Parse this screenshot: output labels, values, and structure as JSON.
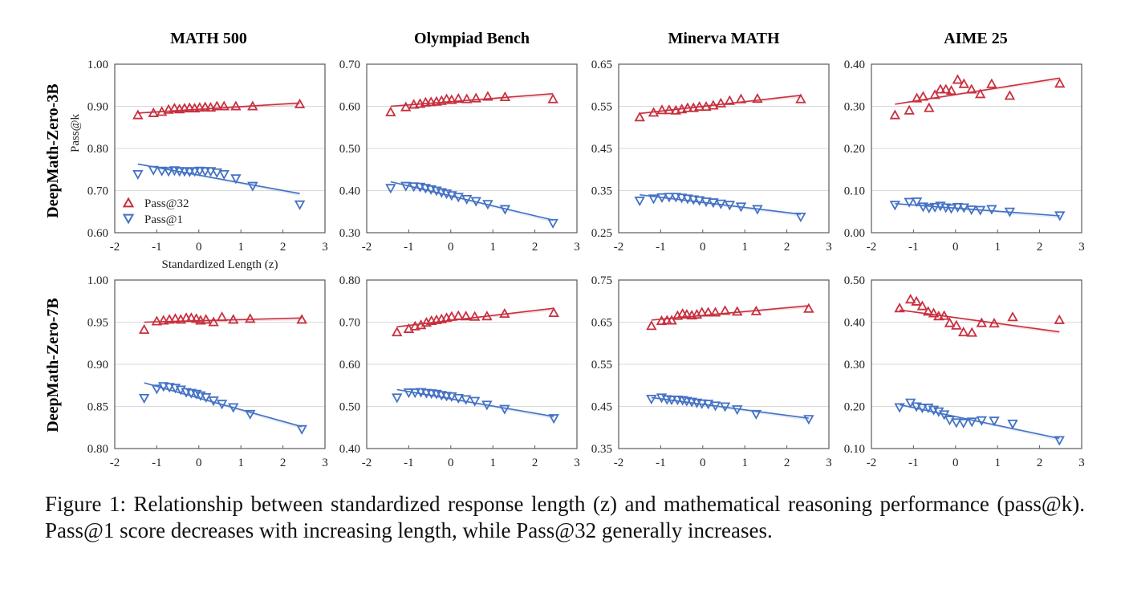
{
  "figure": {
    "caption": "Figure 1: Relationship between standardized response length (z) and mathematical reasoning performance (pass@k). Pass@1 score decreases with increasing length, while Pass@32 generally increases."
  },
  "colors": {
    "pass32": "#c8303f",
    "pass1": "#4472c4",
    "grid": "#d9d9d9",
    "frame": "#595959"
  },
  "chart_data": {
    "type": "scatter",
    "layout": "2x4 grid of panels with linear trend lines",
    "columns": [
      "MATH 500",
      "Olympiad Bench",
      "Minerva MATH",
      "AIME 25"
    ],
    "rows": [
      "DeepMath-Zero-3B",
      "DeepMath-Zero-7B"
    ],
    "xlabel": "Standardized Length (z)",
    "ylabel": "Pass@k",
    "xlim": [
      -2,
      3
    ],
    "xticks": [
      -2,
      -1,
      0,
      1,
      2,
      3
    ],
    "legend": {
      "placement": "bottom-left of first panel",
      "entries": [
        {
          "name": "Pass@32",
          "marker": "triangle-up"
        },
        {
          "name": "Pass@1",
          "marker": "triangle-down"
        }
      ]
    },
    "grid": true,
    "panels": [
      {
        "row": "DeepMath-Zero-3B",
        "column": "MATH 500",
        "ylim": [
          0.6,
          1.0
        ],
        "yticks": [
          "0.60",
          "0.70",
          "0.80",
          "0.90",
          "1.00"
        ],
        "series": [
          {
            "name": "Pass@32",
            "x": [
              -1.45,
              -1.08,
              -0.88,
              -0.72,
              -0.58,
              -0.46,
              -0.34,
              -0.22,
              -0.1,
              0.02,
              0.15,
              0.28,
              0.43,
              0.6,
              0.88,
              1.28,
              2.4
            ],
            "y": [
              0.879,
              0.884,
              0.887,
              0.892,
              0.895,
              0.893,
              0.895,
              0.896,
              0.895,
              0.897,
              0.898,
              0.897,
              0.9,
              0.9,
              0.9,
              0.9,
              0.905
            ],
            "trend": [
              [
                -1.45,
                0.884
              ],
              [
                2.4,
                0.908
              ]
            ]
          },
          {
            "name": "Pass@1",
            "x": [
              -1.45,
              -1.08,
              -0.88,
              -0.72,
              -0.58,
              -0.46,
              -0.34,
              -0.22,
              -0.1,
              0.02,
              0.15,
              0.28,
              0.43,
              0.6,
              0.88,
              1.28,
              2.4
            ],
            "y": [
              0.739,
              0.749,
              0.747,
              0.746,
              0.748,
              0.746,
              0.746,
              0.745,
              0.746,
              0.747,
              0.746,
              0.746,
              0.743,
              0.739,
              0.729,
              0.711,
              0.667
            ],
            "trend": [
              [
                -1.45,
                0.763
              ],
              [
                2.4,
                0.693
              ]
            ]
          }
        ]
      },
      {
        "row": "DeepMath-Zero-3B",
        "column": "Olympiad Bench",
        "ylim": [
          0.3,
          0.7
        ],
        "yticks": [
          "0.30",
          "0.40",
          "0.50",
          "0.60",
          "0.70"
        ],
        "series": [
          {
            "name": "Pass@32",
            "x": [
              -1.43,
              -1.07,
              -0.88,
              -0.73,
              -0.6,
              -0.47,
              -0.34,
              -0.22,
              -0.1,
              0.02,
              0.18,
              0.38,
              0.6,
              0.88,
              1.29,
              2.43
            ],
            "y": [
              0.586,
              0.598,
              0.604,
              0.606,
              0.609,
              0.61,
              0.611,
              0.613,
              0.617,
              0.615,
              0.618,
              0.617,
              0.619,
              0.623,
              0.622,
              0.617
            ],
            "trend": [
              [
                -1.43,
                0.6
              ],
              [
                2.43,
                0.63
              ]
            ]
          },
          {
            "name": "Pass@1",
            "x": [
              -1.43,
              -1.07,
              -0.88,
              -0.73,
              -0.6,
              -0.47,
              -0.34,
              -0.22,
              -0.1,
              0.02,
              0.18,
              0.38,
              0.6,
              0.88,
              1.29,
              2.43
            ],
            "y": [
              0.406,
              0.411,
              0.41,
              0.409,
              0.406,
              0.403,
              0.4,
              0.396,
              0.393,
              0.389,
              0.385,
              0.38,
              0.375,
              0.368,
              0.356,
              0.323
            ],
            "trend": [
              [
                -1.43,
                0.421
              ],
              [
                2.43,
                0.33
              ]
            ]
          }
        ]
      },
      {
        "row": "DeepMath-Zero-3B",
        "column": "Minerva MATH",
        "ylim": [
          0.25,
          0.65
        ],
        "yticks": [
          "0.25",
          "0.35",
          "0.45",
          "0.55",
          "0.65"
        ],
        "series": [
          {
            "name": "Pass@32",
            "x": [
              -1.5,
              -1.17,
              -0.97,
              -0.8,
              -0.64,
              -0.5,
              -0.36,
              -0.22,
              -0.08,
              0.08,
              0.25,
              0.43,
              0.64,
              0.91,
              1.3,
              2.33
            ],
            "y": [
              0.524,
              0.535,
              0.541,
              0.541,
              0.54,
              0.543,
              0.546,
              0.546,
              0.549,
              0.549,
              0.552,
              0.557,
              0.563,
              0.567,
              0.568,
              0.567
            ],
            "trend": [
              [
                -1.5,
                0.533
              ],
              [
                2.33,
                0.576
              ]
            ]
          },
          {
            "name": "Pass@1",
            "x": [
              -1.5,
              -1.17,
              -0.97,
              -0.8,
              -0.64,
              -0.5,
              -0.36,
              -0.22,
              -0.08,
              0.08,
              0.25,
              0.43,
              0.64,
              0.91,
              1.3,
              2.33
            ],
            "y": [
              0.326,
              0.331,
              0.334,
              0.335,
              0.335,
              0.333,
              0.331,
              0.329,
              0.327,
              0.324,
              0.322,
              0.319,
              0.316,
              0.312,
              0.306,
              0.288
            ],
            "trend": [
              [
                -1.5,
                0.34
              ],
              [
                2.33,
                0.294
              ]
            ]
          }
        ]
      },
      {
        "row": "DeepMath-Zero-3B",
        "column": "AIME 25",
        "ylim": [
          0.0,
          0.4
        ],
        "yticks": [
          "0.00",
          "0.10",
          "0.20",
          "0.30",
          "0.40"
        ],
        "series": [
          {
            "name": "Pass@32",
            "x": [
              -1.44,
              -1.1,
              -0.92,
              -0.77,
              -0.63,
              -0.49,
              -0.36,
              -0.23,
              -0.1,
              0.05,
              0.2,
              0.38,
              0.59,
              0.86,
              1.29,
              2.48
            ],
            "y": [
              0.279,
              0.29,
              0.319,
              0.323,
              0.296,
              0.327,
              0.34,
              0.34,
              0.337,
              0.363,
              0.353,
              0.34,
              0.329,
              0.353,
              0.325,
              0.354
            ],
            "trend": [
              [
                -1.44,
                0.305
              ],
              [
                2.48,
                0.367
              ]
            ]
          },
          {
            "name": "Pass@1",
            "x": [
              -1.44,
              -1.1,
              -0.92,
              -0.77,
              -0.63,
              -0.49,
              -0.36,
              -0.23,
              -0.1,
              0.05,
              0.2,
              0.38,
              0.59,
              0.86,
              1.29,
              2.48
            ],
            "y": [
              0.066,
              0.073,
              0.074,
              0.062,
              0.059,
              0.061,
              0.064,
              0.06,
              0.058,
              0.061,
              0.06,
              0.055,
              0.054,
              0.056,
              0.05,
              0.041
            ],
            "trend": [
              [
                -1.44,
                0.069
              ],
              [
                2.48,
                0.04
              ]
            ]
          }
        ]
      },
      {
        "row": "DeepMath-Zero-7B",
        "column": "MATH 500",
        "ylim": [
          0.8,
          1.0
        ],
        "yticks": [
          "0.80",
          "0.85",
          "0.90",
          "0.95",
          "1.00"
        ],
        "series": [
          {
            "name": "Pass@32",
            "x": [
              -1.3,
              -1.0,
              -0.84,
              -0.7,
              -0.56,
              -0.43,
              -0.3,
              -0.18,
              -0.06,
              0.04,
              0.17,
              0.35,
              0.55,
              0.82,
              1.22,
              2.45
            ],
            "y": [
              0.941,
              0.951,
              0.952,
              0.953,
              0.954,
              0.953,
              0.955,
              0.955,
              0.954,
              0.952,
              0.953,
              0.95,
              0.956,
              0.953,
              0.954,
              0.953
            ],
            "trend": [
              [
                -1.3,
                0.95
              ],
              [
                2.45,
                0.955
              ]
            ]
          },
          {
            "name": "Pass@1",
            "x": [
              -1.3,
              -1.0,
              -0.84,
              -0.7,
              -0.56,
              -0.43,
              -0.3,
              -0.18,
              -0.06,
              0.04,
              0.17,
              0.35,
              0.55,
              0.82,
              1.22,
              2.45
            ],
            "y": [
              0.86,
              0.871,
              0.874,
              0.873,
              0.872,
              0.87,
              0.867,
              0.866,
              0.865,
              0.863,
              0.861,
              0.857,
              0.853,
              0.849,
              0.841,
              0.823
            ],
            "trend": [
              [
                -1.3,
                0.878
              ],
              [
                2.45,
                0.826
              ]
            ]
          }
        ]
      },
      {
        "row": "DeepMath-Zero-7B",
        "column": "Olympiad Bench",
        "ylim": [
          0.4,
          0.8
        ],
        "yticks": [
          "0.40",
          "0.50",
          "0.60",
          "0.70",
          "0.80"
        ],
        "series": [
          {
            "name": "Pass@32",
            "x": [
              -1.28,
              -1.0,
              -0.85,
              -0.71,
              -0.58,
              -0.46,
              -0.34,
              -0.22,
              -0.1,
              0.02,
              0.18,
              0.36,
              0.57,
              0.86,
              1.28,
              2.45
            ],
            "y": [
              0.676,
              0.684,
              0.69,
              0.693,
              0.699,
              0.703,
              0.705,
              0.707,
              0.71,
              0.713,
              0.715,
              0.714,
              0.713,
              0.714,
              0.72,
              0.722
            ],
            "trend": [
              [
                -1.28,
                0.689
              ],
              [
                2.45,
                0.733
              ]
            ]
          },
          {
            "name": "Pass@1",
            "x": [
              -1.28,
              -1.0,
              -0.85,
              -0.71,
              -0.58,
              -0.46,
              -0.34,
              -0.22,
              -0.1,
              0.02,
              0.18,
              0.36,
              0.57,
              0.86,
              1.28,
              2.45
            ],
            "y": [
              0.521,
              0.533,
              0.533,
              0.534,
              0.532,
              0.531,
              0.53,
              0.527,
              0.525,
              0.524,
              0.52,
              0.517,
              0.513,
              0.504,
              0.494,
              0.472
            ],
            "trend": [
              [
                -1.28,
                0.54
              ],
              [
                2.45,
                0.476
              ]
            ]
          }
        ]
      },
      {
        "row": "DeepMath-Zero-7B",
        "column": "Minerva MATH",
        "ylim": [
          0.35,
          0.75
        ],
        "yticks": [
          "0.35",
          "0.45",
          "0.55",
          "0.65",
          "0.75"
        ],
        "series": [
          {
            "name": "Pass@32",
            "x": [
              -1.22,
              -0.98,
              -0.85,
              -0.74,
              -0.6,
              -0.48,
              -0.38,
              -0.26,
              -0.14,
              -0.02,
              0.13,
              0.3,
              0.53,
              0.82,
              1.27,
              2.52
            ],
            "y": [
              0.641,
              0.653,
              0.654,
              0.654,
              0.665,
              0.67,
              0.668,
              0.666,
              0.668,
              0.673,
              0.673,
              0.673,
              0.677,
              0.675,
              0.676,
              0.682
            ],
            "trend": [
              [
                -1.22,
                0.655
              ],
              [
                2.52,
                0.689
              ]
            ]
          },
          {
            "name": "Pass@1",
            "x": [
              -1.22,
              -0.98,
              -0.85,
              -0.74,
              -0.6,
              -0.48,
              -0.38,
              -0.26,
              -0.14,
              -0.02,
              0.13,
              0.3,
              0.53,
              0.82,
              1.27,
              2.52
            ],
            "y": [
              0.468,
              0.471,
              0.467,
              0.466,
              0.466,
              0.465,
              0.463,
              0.461,
              0.459,
              0.457,
              0.456,
              0.452,
              0.45,
              0.443,
              0.432,
              0.42
            ],
            "trend": [
              [
                -1.22,
                0.471
              ],
              [
                2.52,
                0.422
              ]
            ]
          }
        ]
      },
      {
        "row": "DeepMath-Zero-7B",
        "column": "AIME 25",
        "ylim": [
          0.1,
          0.5
        ],
        "yticks": [
          "0.10",
          "0.20",
          "0.30",
          "0.40",
          "0.50"
        ],
        "series": [
          {
            "name": "Pass@32",
            "x": [
              -1.33,
              -1.07,
              -0.93,
              -0.79,
              -0.65,
              -0.52,
              -0.4,
              -0.27,
              -0.14,
              0.02,
              0.19,
              0.39,
              0.62,
              0.92,
              1.36,
              2.47
            ],
            "y": [
              0.433,
              0.454,
              0.449,
              0.438,
              0.425,
              0.421,
              0.414,
              0.415,
              0.398,
              0.392,
              0.376,
              0.375,
              0.398,
              0.397,
              0.412,
              0.405
            ],
            "trend": [
              [
                -1.33,
                0.429
              ],
              [
                2.47,
                0.377
              ]
            ]
          },
          {
            "name": "Pass@1",
            "x": [
              -1.33,
              -1.07,
              -0.93,
              -0.79,
              -0.65,
              -0.52,
              -0.4,
              -0.27,
              -0.14,
              0.02,
              0.19,
              0.39,
              0.62,
              0.92,
              1.36,
              2.47
            ],
            "y": [
              0.198,
              0.209,
              0.2,
              0.197,
              0.197,
              0.192,
              0.188,
              0.181,
              0.168,
              0.162,
              0.161,
              0.164,
              0.167,
              0.166,
              0.159,
              0.12
            ],
            "trend": [
              [
                -1.33,
                0.204
              ],
              [
                2.47,
                0.124
              ]
            ]
          }
        ]
      }
    ]
  }
}
